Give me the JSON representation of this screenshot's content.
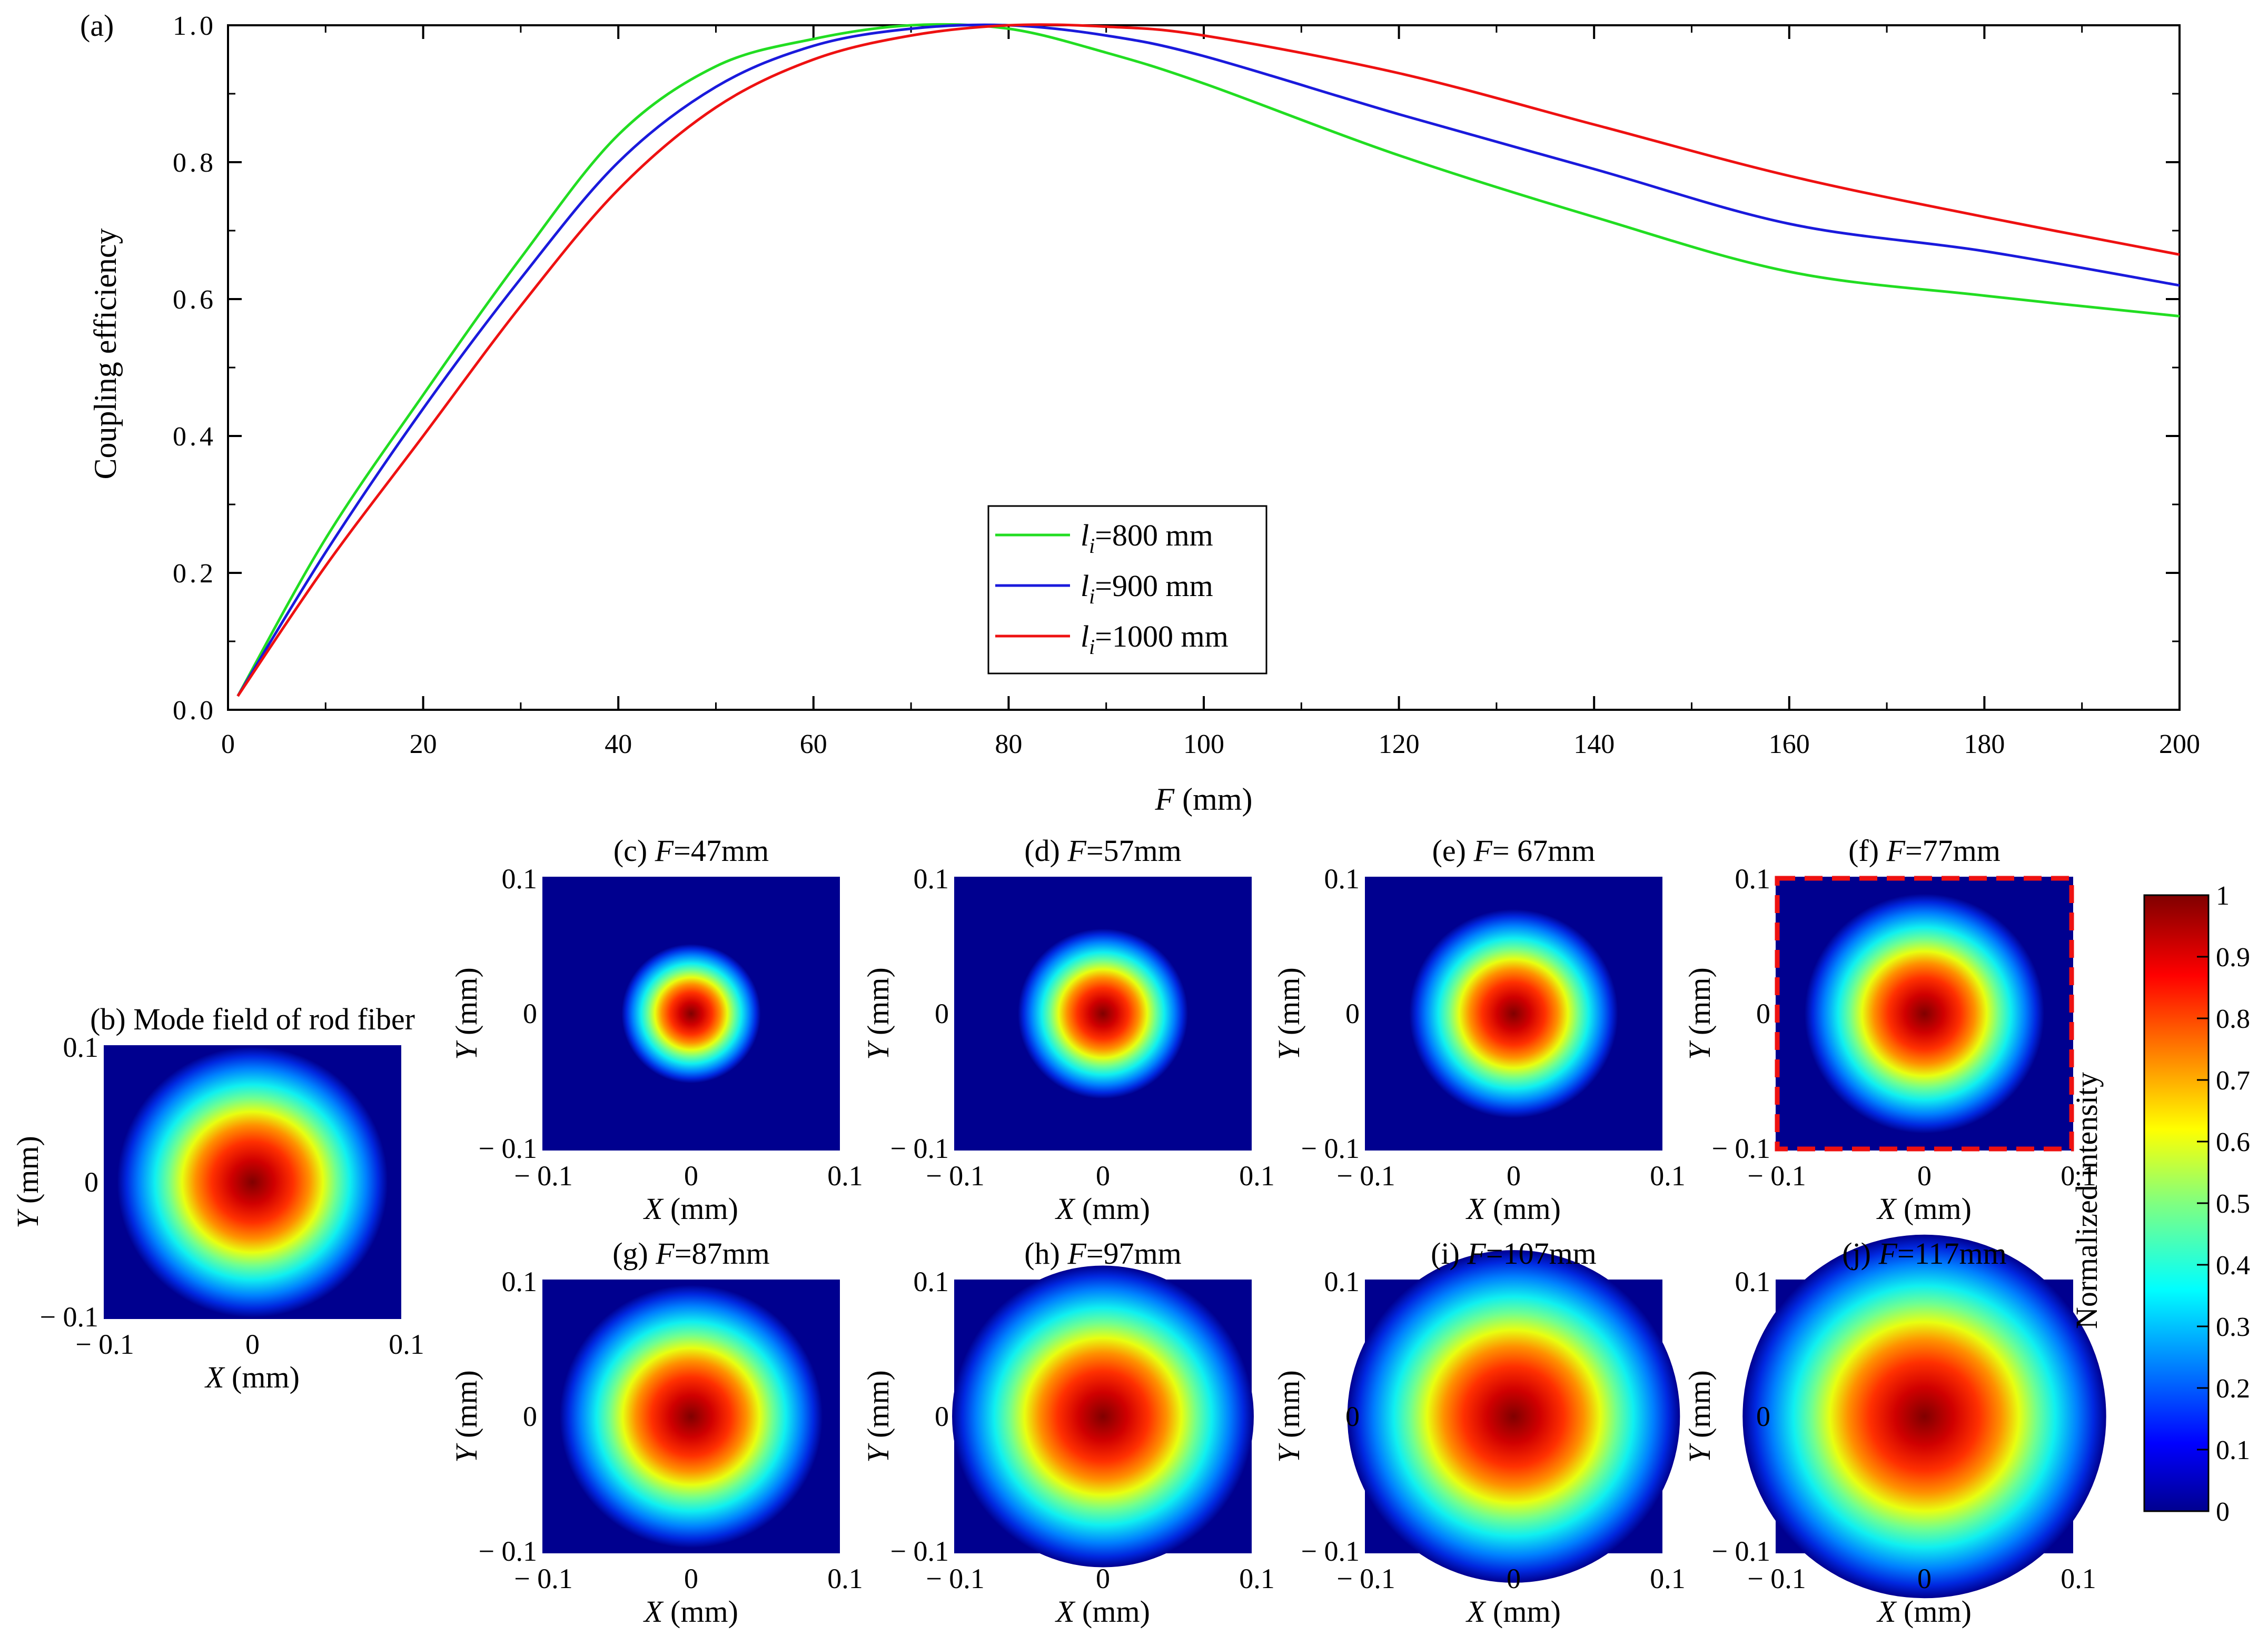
{
  "chart_data": [
    {
      "id": "a",
      "panel_label": "(a)",
      "type": "line",
      "xlabel": {
        "var": "F",
        "unit": " (mm)"
      },
      "ylabel": "Coupling efficiency",
      "xlim": [
        0,
        200
      ],
      "ylim": [
        0.0,
        1.0
      ],
      "xticks": [
        "0",
        "20",
        "40",
        "60",
        "80",
        "100",
        "120",
        "140",
        "160",
        "180",
        "200"
      ],
      "yticks": [
        "0.0",
        "0.2",
        "0.4",
        "0.6",
        "0.8",
        "1.0"
      ],
      "legend_position": "bottom-center",
      "x": [
        1,
        10,
        20,
        30,
        40,
        50,
        60,
        70,
        80,
        90,
        100,
        120,
        140,
        160,
        180,
        200
      ],
      "series": [
        {
          "name": "l_i=800 mm",
          "legend_var": "l",
          "legend_sub": "i",
          "legend_text": "=800 mm",
          "color": "#22dd22",
          "values": [
            0.02,
            0.25,
            0.46,
            0.66,
            0.84,
            0.94,
            0.98,
            1.0,
            0.995,
            0.96,
            0.915,
            0.81,
            0.72,
            0.64,
            0.605,
            0.575
          ]
        },
        {
          "name": "l_i=900 mm",
          "legend_var": "l",
          "legend_sub": "i",
          "legend_text": "=900 mm",
          "color": "#1a1adc",
          "values": [
            0.02,
            0.23,
            0.44,
            0.63,
            0.8,
            0.91,
            0.97,
            0.995,
            1.0,
            0.985,
            0.955,
            0.87,
            0.79,
            0.71,
            0.67,
            0.62
          ]
        },
        {
          "name": "l_i=1000 mm",
          "legend_var": "l",
          "legend_sub": "i",
          "legend_text": "=1000 mm",
          "color": "#ee1111",
          "values": [
            0.02,
            0.21,
            0.4,
            0.59,
            0.76,
            0.88,
            0.95,
            0.985,
            1.0,
            0.998,
            0.985,
            0.93,
            0.855,
            0.78,
            0.72,
            0.665
          ]
        }
      ]
    },
    {
      "id": "maps",
      "type": "heatmap",
      "colormap": "jet",
      "axis_range": [
        -0.1,
        0.1
      ],
      "tick_left": "0.1",
      "tick_mid": "0",
      "tick_right": "0.1",
      "tick_neg": "− 0.1",
      "xlabel": {
        "var": "X",
        "unit": " (mm)"
      },
      "ylabel": {
        "var": "Y",
        "unit": " (mm)"
      },
      "panels": [
        {
          "id": "b",
          "title_prefix": "(b) Mode field of rod fiber",
          "title_var": "",
          "title_suffix": "",
          "spot_radius": 0.035,
          "highlighted": false
        },
        {
          "id": "c",
          "title_prefix": "(c) ",
          "title_var": "F",
          "title_suffix": "=47mm",
          "spot_radius": 0.018,
          "highlighted": false
        },
        {
          "id": "d",
          "title_prefix": "(d) ",
          "title_var": "F",
          "title_suffix": "=57mm",
          "spot_radius": 0.022,
          "highlighted": false
        },
        {
          "id": "e",
          "title_prefix": "(e) ",
          "title_var": "F",
          "title_suffix": "= 67mm",
          "spot_radius": 0.027,
          "highlighted": false
        },
        {
          "id": "f",
          "title_prefix": "(f) ",
          "title_var": "F",
          "title_suffix": "=77mm",
          "spot_radius": 0.031,
          "highlighted": true
        },
        {
          "id": "g",
          "title_prefix": "(g) ",
          "title_var": "F",
          "title_suffix": "=87mm",
          "spot_radius": 0.034,
          "highlighted": false
        },
        {
          "id": "h",
          "title_prefix": "(h) ",
          "title_var": "F",
          "title_suffix": "=97mm",
          "spot_radius": 0.039,
          "highlighted": false
        },
        {
          "id": "i",
          "title_prefix": "(i) ",
          "title_var": "F",
          "title_suffix": "=107mm",
          "spot_radius": 0.043,
          "highlighted": false
        },
        {
          "id": "j",
          "title_prefix": "(j) ",
          "title_var": "F",
          "title_suffix": "=117mm",
          "spot_radius": 0.047,
          "highlighted": false
        }
      ],
      "colorbar": {
        "label": "Normalized intensity",
        "ticks": [
          "0",
          "0.1",
          "0.2",
          "0.3",
          "0.4",
          "0.5",
          "0.6",
          "0.7",
          "0.8",
          "0.9",
          "1"
        ],
        "range": [
          0,
          1
        ]
      }
    }
  ]
}
